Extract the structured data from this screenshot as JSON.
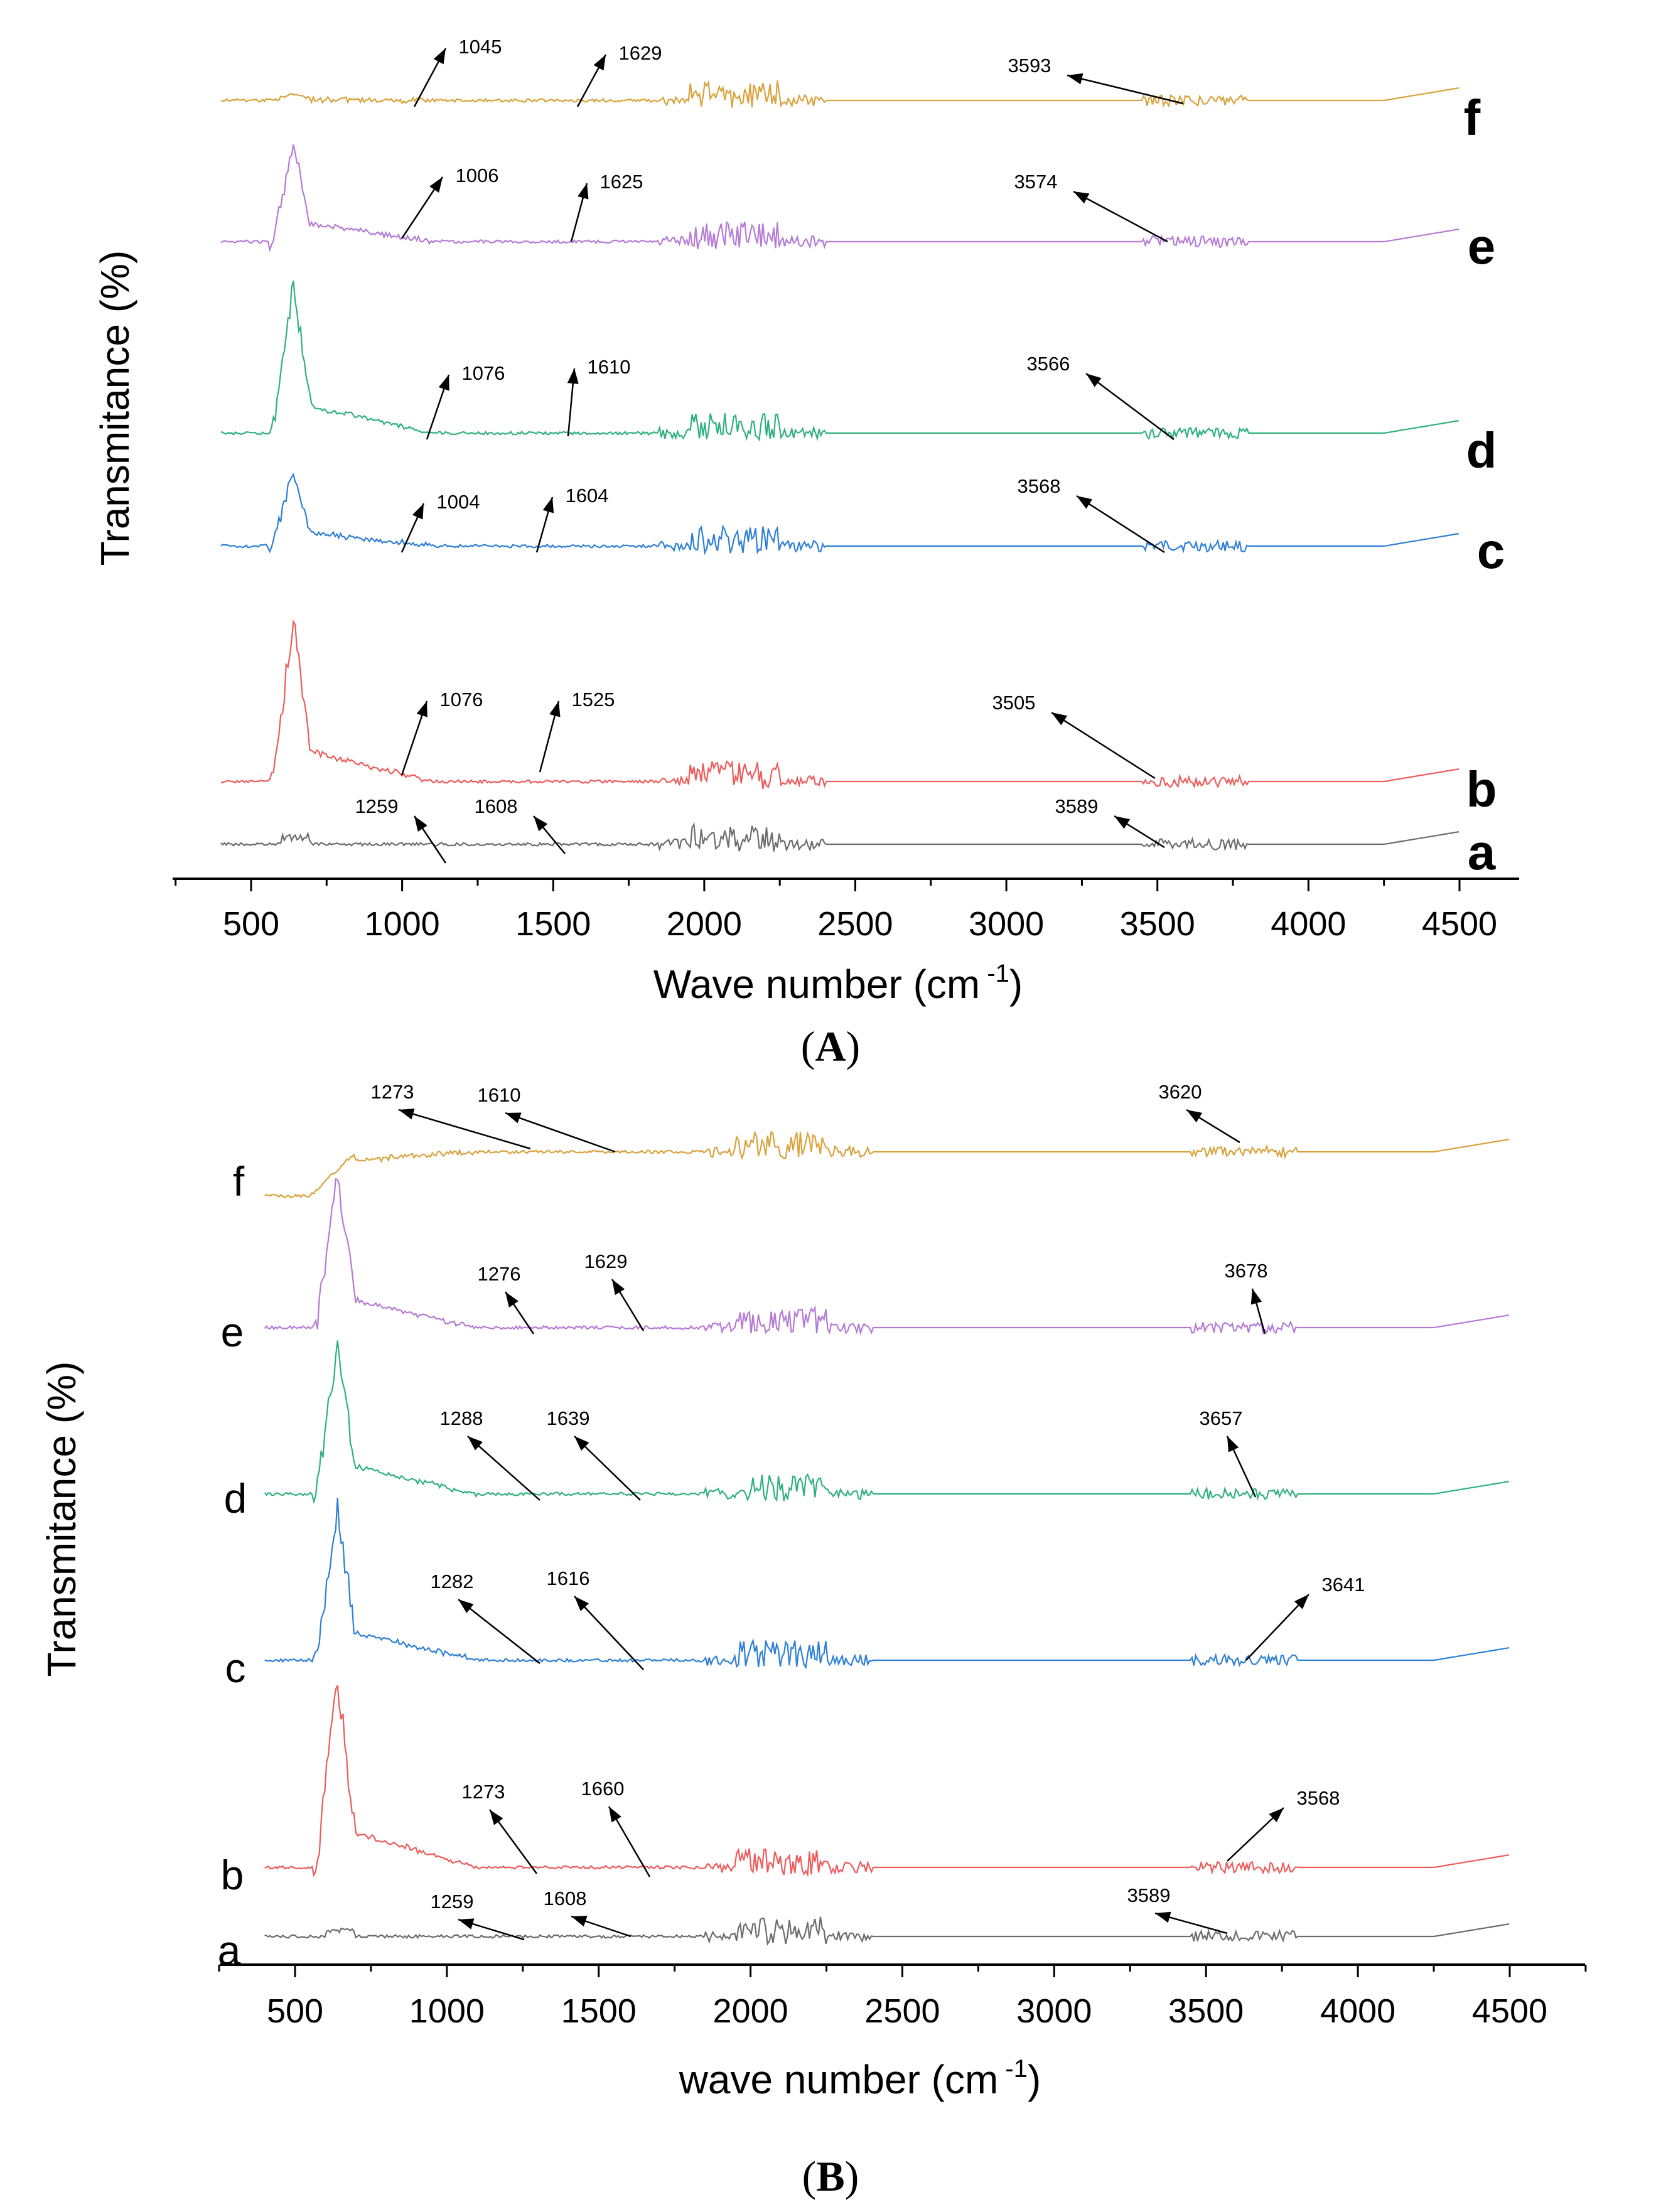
{
  "figure": {
    "panel_labels": [
      {
        "open": "(",
        "letter": "A",
        "close": ")"
      },
      {
        "open": "(",
        "letter": "B",
        "close": ")"
      }
    ]
  },
  "colors": {
    "a": "#6b6b6b",
    "b": "#ef5a5a",
    "c": "#2d7fd6",
    "d": "#2fb07f",
    "e": "#b57ad6",
    "f": "#d9a23a"
  },
  "chart_data": [
    {
      "type": "line",
      "title": "",
      "xlabel": "Wave number (cm",
      "xlabel_sup": "-1",
      "xlabel_close": ")",
      "ylabel": "Transmitance (%)",
      "xlim": [
        250,
        4700
      ],
      "xticks": [
        500,
        1000,
        1500,
        2000,
        2500,
        3000,
        3500,
        4000,
        4500
      ],
      "x_range": [
        400,
        4500
      ],
      "series": [
        {
          "name": "a",
          "annotations": [
            "1259",
            "1608",
            "3589"
          ]
        },
        {
          "name": "b",
          "annotations": [
            "1076",
            "1525",
            "3505"
          ]
        },
        {
          "name": "c",
          "annotations": [
            "1004",
            "1604",
            "3568"
          ]
        },
        {
          "name": "d",
          "annotations": [
            "1076",
            "1610",
            "3566"
          ]
        },
        {
          "name": "e",
          "annotations": [
            "1006",
            "1625",
            "3574"
          ]
        },
        {
          "name": "f",
          "annotations": [
            "1045",
            "1629",
            "3593"
          ]
        }
      ]
    },
    {
      "type": "line",
      "title": "",
      "xlabel": "wave number (cm",
      "xlabel_sup": "-1",
      "xlabel_close": ")",
      "ylabel": "Transmitance (%)",
      "xlim": [
        250,
        4700
      ],
      "xticks": [
        500,
        1000,
        1500,
        2000,
        2500,
        3000,
        3500,
        4000,
        4500
      ],
      "x_range": [
        400,
        4500
      ],
      "series": [
        {
          "name": "a",
          "annotations": [
            "1259",
            "1608",
            "3589"
          ]
        },
        {
          "name": "b",
          "annotations": [
            "1273",
            "1660",
            "3568"
          ]
        },
        {
          "name": "c",
          "annotations": [
            "1282",
            "1616",
            "3641"
          ]
        },
        {
          "name": "d",
          "annotations": [
            "1288",
            "1639",
            "3657"
          ]
        },
        {
          "name": "e",
          "annotations": [
            "1276",
            "1629",
            "3678"
          ]
        },
        {
          "name": "f",
          "annotations": [
            "1273",
            "1610",
            "3620"
          ]
        }
      ]
    }
  ]
}
